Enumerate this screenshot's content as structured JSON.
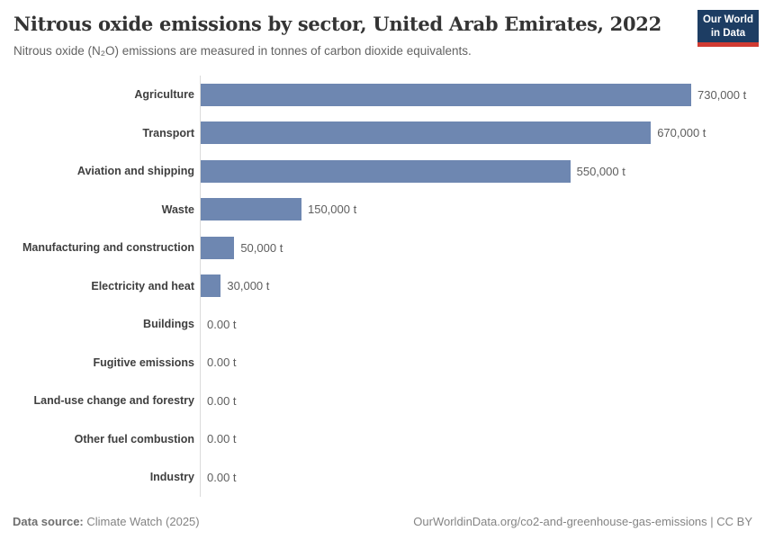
{
  "header": {
    "title": "Nitrous oxide emissions by sector, United Arab Emirates, 2022",
    "subtitle": "Nitrous oxide (N₂O) emissions are measured in tonnes of carbon dioxide equivalents.",
    "logo": {
      "line1": "Our World",
      "line2": "in Data"
    }
  },
  "chart_data": {
    "type": "bar",
    "orientation": "horizontal",
    "title": "Nitrous oxide emissions by sector, United Arab Emirates, 2022",
    "unit": "tonnes of CO2 equivalents",
    "categories": [
      "Agriculture",
      "Transport",
      "Aviation and shipping",
      "Waste",
      "Manufacturing and construction",
      "Electricity and heat",
      "Buildings",
      "Fugitive emissions",
      "Land-use change and forestry",
      "Other fuel combustion",
      "Industry"
    ],
    "values": [
      730000,
      670000,
      550000,
      150000,
      50000,
      30000,
      0,
      0,
      0,
      0,
      0
    ],
    "value_labels": [
      "730,000 t",
      "670,000 t",
      "550,000 t",
      "150,000 t",
      "50,000 t",
      "30,000 t",
      "0.00 t",
      "0.00 t",
      "0.00 t",
      "0.00 t",
      "0.00 t"
    ],
    "xlim": [
      0,
      730000
    ],
    "grid": false,
    "legend": "none",
    "bar_color": "#6e87b1",
    "axis_line_color": "#dbdbdb"
  },
  "footer": {
    "source_label": "Data source:",
    "source_value": "Climate Watch (2025)",
    "right_text": "OurWorldinData.org/co2-and-greenhouse-gas-emissions | CC BY"
  },
  "colors": {
    "logo_navy": "#1d3d63",
    "logo_red": "#d13b32",
    "bar_blue": "#6e87b1"
  }
}
